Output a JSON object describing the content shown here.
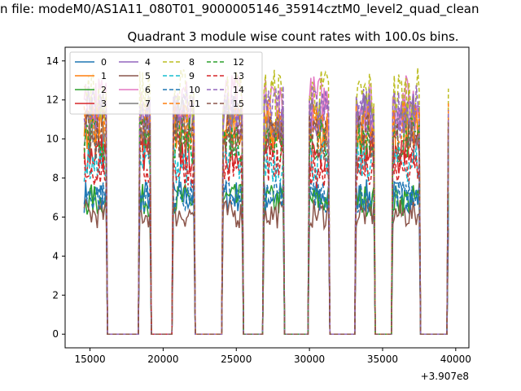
{
  "chart_data": {
    "type": "line",
    "suptitle": "n file: modeM0/AS1A11_080T01_9000005146_35914cztM0_level2_quad_clean",
    "title": "Quadrant 3 module wise count rates with 100.0s bins.",
    "xlabel": "",
    "ylabel": "",
    "x_offset_label": "+3.907e8",
    "xlim": [
      13300,
      40900
    ],
    "ylim": [
      -0.7,
      14.7
    ],
    "x_ticks": [
      15000,
      20000,
      25000,
      30000,
      35000,
      40000
    ],
    "x_tick_labels": [
      "15000",
      "20000",
      "25000",
      "30000",
      "35000",
      "40000"
    ],
    "y_ticks": [
      0,
      2,
      4,
      6,
      8,
      10,
      12,
      14
    ],
    "y_tick_labels": [
      "0",
      "2",
      "4",
      "6",
      "8",
      "10",
      "12",
      "14"
    ],
    "legend": {
      "placement": "top-left",
      "ncol": 4
    },
    "on_intervals": [
      [
        14600,
        16100
      ],
      [
        18400,
        19100
      ],
      [
        20700,
        22100
      ],
      [
        24100,
        25400
      ],
      [
        26900,
        28200
      ],
      [
        30000,
        31300
      ],
      [
        33200,
        34400
      ],
      [
        35700,
        37500
      ],
      [
        39500,
        39500
      ]
    ],
    "series": [
      {
        "name": "0",
        "level": 6.9,
        "color": "#1f77b4",
        "dash": "solid"
      },
      {
        "name": "1",
        "level": 10.2,
        "color": "#ff7f0e",
        "dash": "solid"
      },
      {
        "name": "2",
        "level": 6.7,
        "color": "#2ca02c",
        "dash": "solid"
      },
      {
        "name": "3",
        "level": 9.1,
        "color": "#d62728",
        "dash": "solid"
      },
      {
        "name": "4",
        "level": 10.9,
        "color": "#9467bd",
        "dash": "solid"
      },
      {
        "name": "5",
        "level": 6.0,
        "color": "#8c564b",
        "dash": "solid"
      },
      {
        "name": "6",
        "level": 11.6,
        "color": "#e377c2",
        "dash": "solid"
      },
      {
        "name": "7",
        "level": 10.7,
        "color": "#7f7f7f",
        "dash": "solid"
      },
      {
        "name": "8",
        "level": 11.9,
        "color": "#bcbd22",
        "dash": "dashed"
      },
      {
        "name": "9",
        "level": 8.6,
        "color": "#17becf",
        "dash": "dashed"
      },
      {
        "name": "10",
        "level": 6.9,
        "color": "#1f77b4",
        "dash": "dashed"
      },
      {
        "name": "11",
        "level": 10.4,
        "color": "#ff7f0e",
        "dash": "dashed"
      },
      {
        "name": "12",
        "level": 9.7,
        "color": "#2ca02c",
        "dash": "dashed"
      },
      {
        "name": "13",
        "level": 8.3,
        "color": "#d62728",
        "dash": "dashed"
      },
      {
        "name": "14",
        "level": 11.1,
        "color": "#9467bd",
        "dash": "dashed"
      },
      {
        "name": "15",
        "level": 9.9,
        "color": "#8c564b",
        "dash": "dashed"
      }
    ]
  }
}
